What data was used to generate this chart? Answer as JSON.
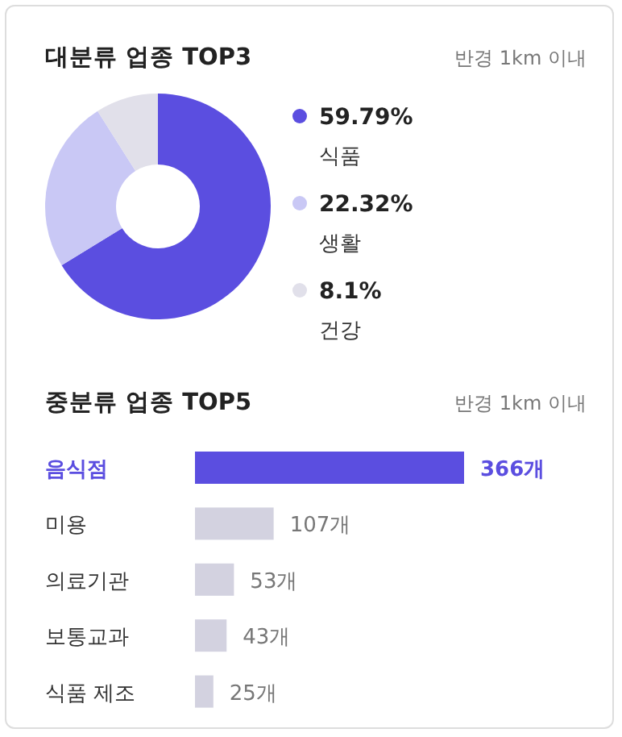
{
  "chart_data": [
    {
      "type": "donut",
      "title": "대분류 업종 TOP3",
      "subtitle": "반경 1km 이내",
      "categories": [
        "식품",
        "생활",
        "건강"
      ],
      "values": [
        59.79,
        22.32,
        8.1
      ],
      "value_labels": [
        "59.79%",
        "22.32%",
        "8.1%"
      ],
      "colors": [
        "#5b4ee0",
        "#c9c8f5",
        "#e1e0ea"
      ],
      "legend": "right"
    },
    {
      "type": "bar",
      "orientation": "horizontal",
      "title": "중분류 업종 TOP5",
      "subtitle": "반경 1km 이내",
      "categories": [
        "음식점",
        "미용",
        "의료기관",
        "보통교과",
        "식품 제조"
      ],
      "values": [
        366,
        107,
        53,
        43,
        25
      ],
      "value_labels": [
        "366개",
        "107개",
        "53개",
        "43개",
        "25개"
      ],
      "colors": [
        "#5b4ee0",
        "#d3d2e0",
        "#d3d2e0",
        "#d3d2e0",
        "#d3d2e0"
      ]
    }
  ]
}
